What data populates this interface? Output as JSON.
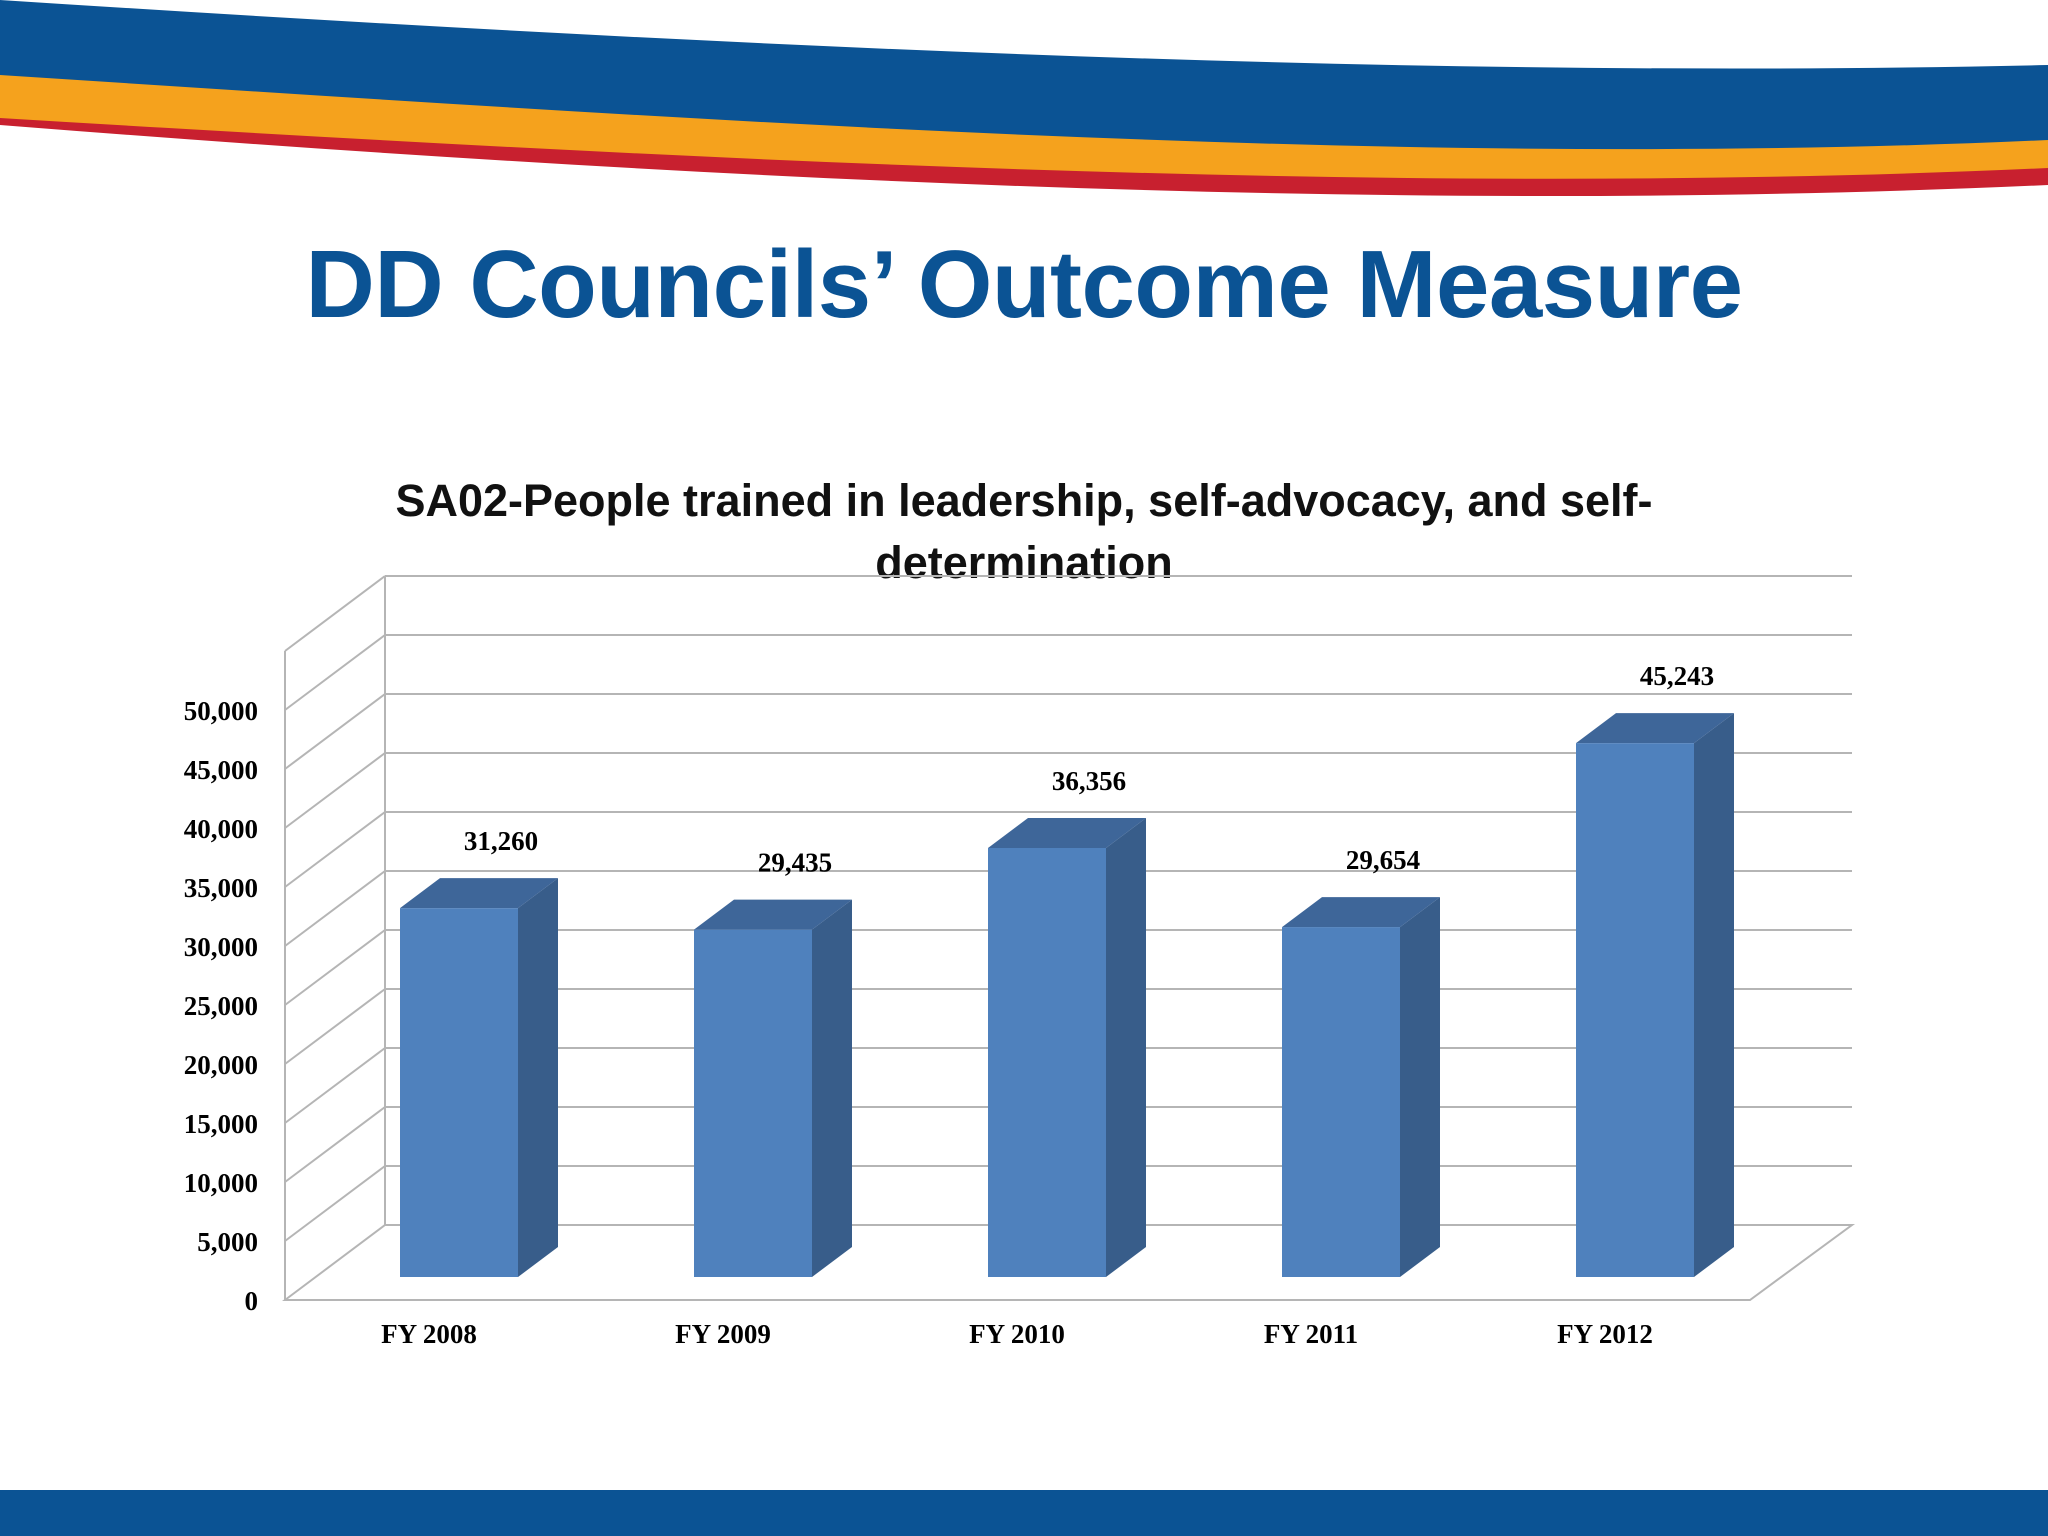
{
  "slide": {
    "title": "DD Councils’ Outcome Measure"
  },
  "colors": {
    "brand_blue": "#0B5394",
    "banner_orange": "#F5A21D",
    "banner_red": "#C8202F",
    "bar_front": "#4F81BD",
    "bar_side": "#385D8A",
    "bar_top": "#3E6699"
  },
  "chart_data": {
    "type": "bar",
    "title": "SA02-People trained in leadership, self-advocacy, and self-determination",
    "title_lines": [
      "SA02-People trained in leadership, self-advocacy, and self-",
      "determination"
    ],
    "categories": [
      "FY 2008",
      "FY 2009",
      "FY 2010",
      "FY 2011",
      "FY 2012"
    ],
    "values": [
      31260,
      29435,
      36356,
      29654,
      45243
    ],
    "data_labels": [
      "31,260",
      "29,435",
      "36,356",
      "29,654",
      "45,243"
    ],
    "yticks": [
      0,
      5000,
      10000,
      15000,
      20000,
      25000,
      30000,
      35000,
      40000,
      45000,
      50000
    ],
    "ytick_labels": [
      "0",
      "5,000",
      "10,000",
      "15,000",
      "20,000",
      "25,000",
      "30,000",
      "35,000",
      "40,000",
      "45,000",
      "50,000"
    ],
    "ylim": [
      0,
      55000
    ],
    "xlabel": "",
    "ylabel": "",
    "grid": true,
    "style": "3d-column"
  }
}
